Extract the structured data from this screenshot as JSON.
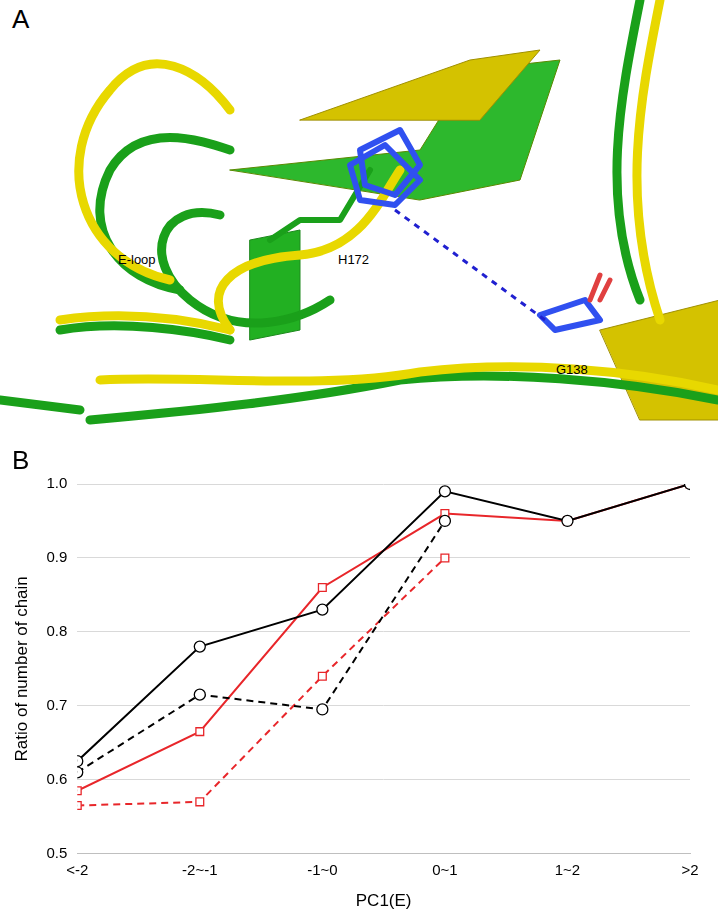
{
  "figure": {
    "panels": [
      {
        "label": "A",
        "annotations": [
          "E-loop",
          "H172",
          "G138"
        ]
      },
      {
        "label": "B"
      }
    ]
  },
  "chart_data": {
    "type": "line",
    "x_label": "PC1(E)",
    "y_label": "Ratio of number of chain",
    "categories": [
      "<-2",
      "-2~-1",
      "-1~0",
      "0~1",
      "1~2",
      ">2"
    ],
    "series": [
      {
        "color": "#000000",
        "marker": "circle",
        "line_style": "solid",
        "values": [
          0.625,
          0.78,
          0.83,
          0.99,
          0.95,
          1.0
        ]
      },
      {
        "color": "#000000",
        "marker": "circle",
        "line_style": "dashed",
        "values": [
          0.61,
          0.715,
          0.695,
          0.95,
          null,
          null
        ]
      },
      {
        "color": "#e8262a",
        "marker": "square",
        "line_style": "solid",
        "values": [
          0.585,
          0.665,
          0.86,
          0.96,
          0.95,
          1.0
        ]
      },
      {
        "color": "#e8262a",
        "marker": "square",
        "line_style": "dashed",
        "values": [
          0.565,
          0.57,
          0.74,
          0.9,
          null,
          null
        ]
      }
    ],
    "ylim": [
      0.5,
      1.0
    ],
    "yticks": [
      0.5,
      0.6,
      0.7,
      0.8,
      0.9,
      {
        "value": 1.0,
        "label": "1.0"
      }
    ],
    "grid": true,
    "legend": "none"
  }
}
